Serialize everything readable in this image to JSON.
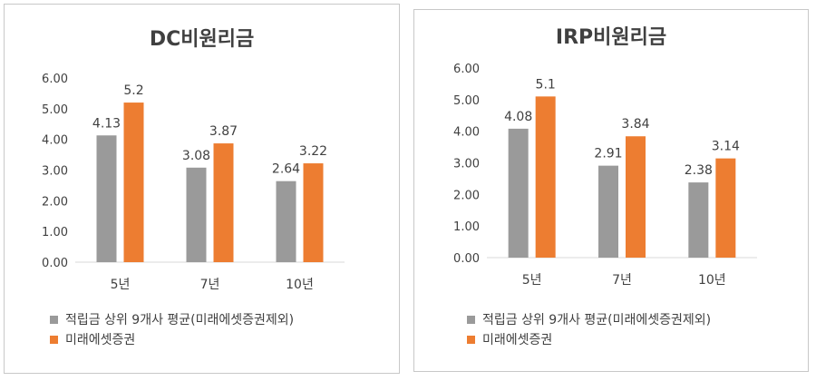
{
  "colors": {
    "series1": "#9a9a9a",
    "series2": "#ed7d31",
    "text": "#404040",
    "axis": "#d9d9d9"
  },
  "chart_data": [
    {
      "type": "bar",
      "title": "DC비원리금",
      "categories": [
        "5년",
        "7년",
        "10년"
      ],
      "series": [
        {
          "name": "적립금 상위 9개사 평균(미래에셋증권제외)",
          "values": [
            4.13,
            3.08,
            2.64
          ],
          "labels": [
            "4.13",
            "3.08",
            "2.64"
          ]
        },
        {
          "name": "미래에셋증권",
          "values": [
            5.2,
            3.87,
            3.22
          ],
          "labels": [
            "5.2",
            "3.87",
            "3.22"
          ]
        }
      ],
      "ylim": [
        0,
        6
      ],
      "yticks": [
        "0.00",
        "1.00",
        "2.00",
        "3.00",
        "4.00",
        "5.00",
        "6.00"
      ],
      "xlabel": "",
      "ylabel": "",
      "legend": "bottom",
      "grid": false
    },
    {
      "type": "bar",
      "title": "IRP비원리금",
      "categories": [
        "5년",
        "7년",
        "10년"
      ],
      "series": [
        {
          "name": "적립금 상위 9개사 평균(미래에셋증권제외)",
          "values": [
            4.08,
            2.91,
            2.38
          ],
          "labels": [
            "4.08",
            "2.91",
            "2.38"
          ]
        },
        {
          "name": "미래에셋증권",
          "values": [
            5.1,
            3.84,
            3.14
          ],
          "labels": [
            "5.1",
            "3.84",
            "3.14"
          ]
        }
      ],
      "ylim": [
        0,
        6
      ],
      "yticks": [
        "0.00",
        "1.00",
        "2.00",
        "3.00",
        "4.00",
        "5.00",
        "6.00"
      ],
      "xlabel": "",
      "ylabel": "",
      "legend": "bottom",
      "grid": false
    }
  ]
}
